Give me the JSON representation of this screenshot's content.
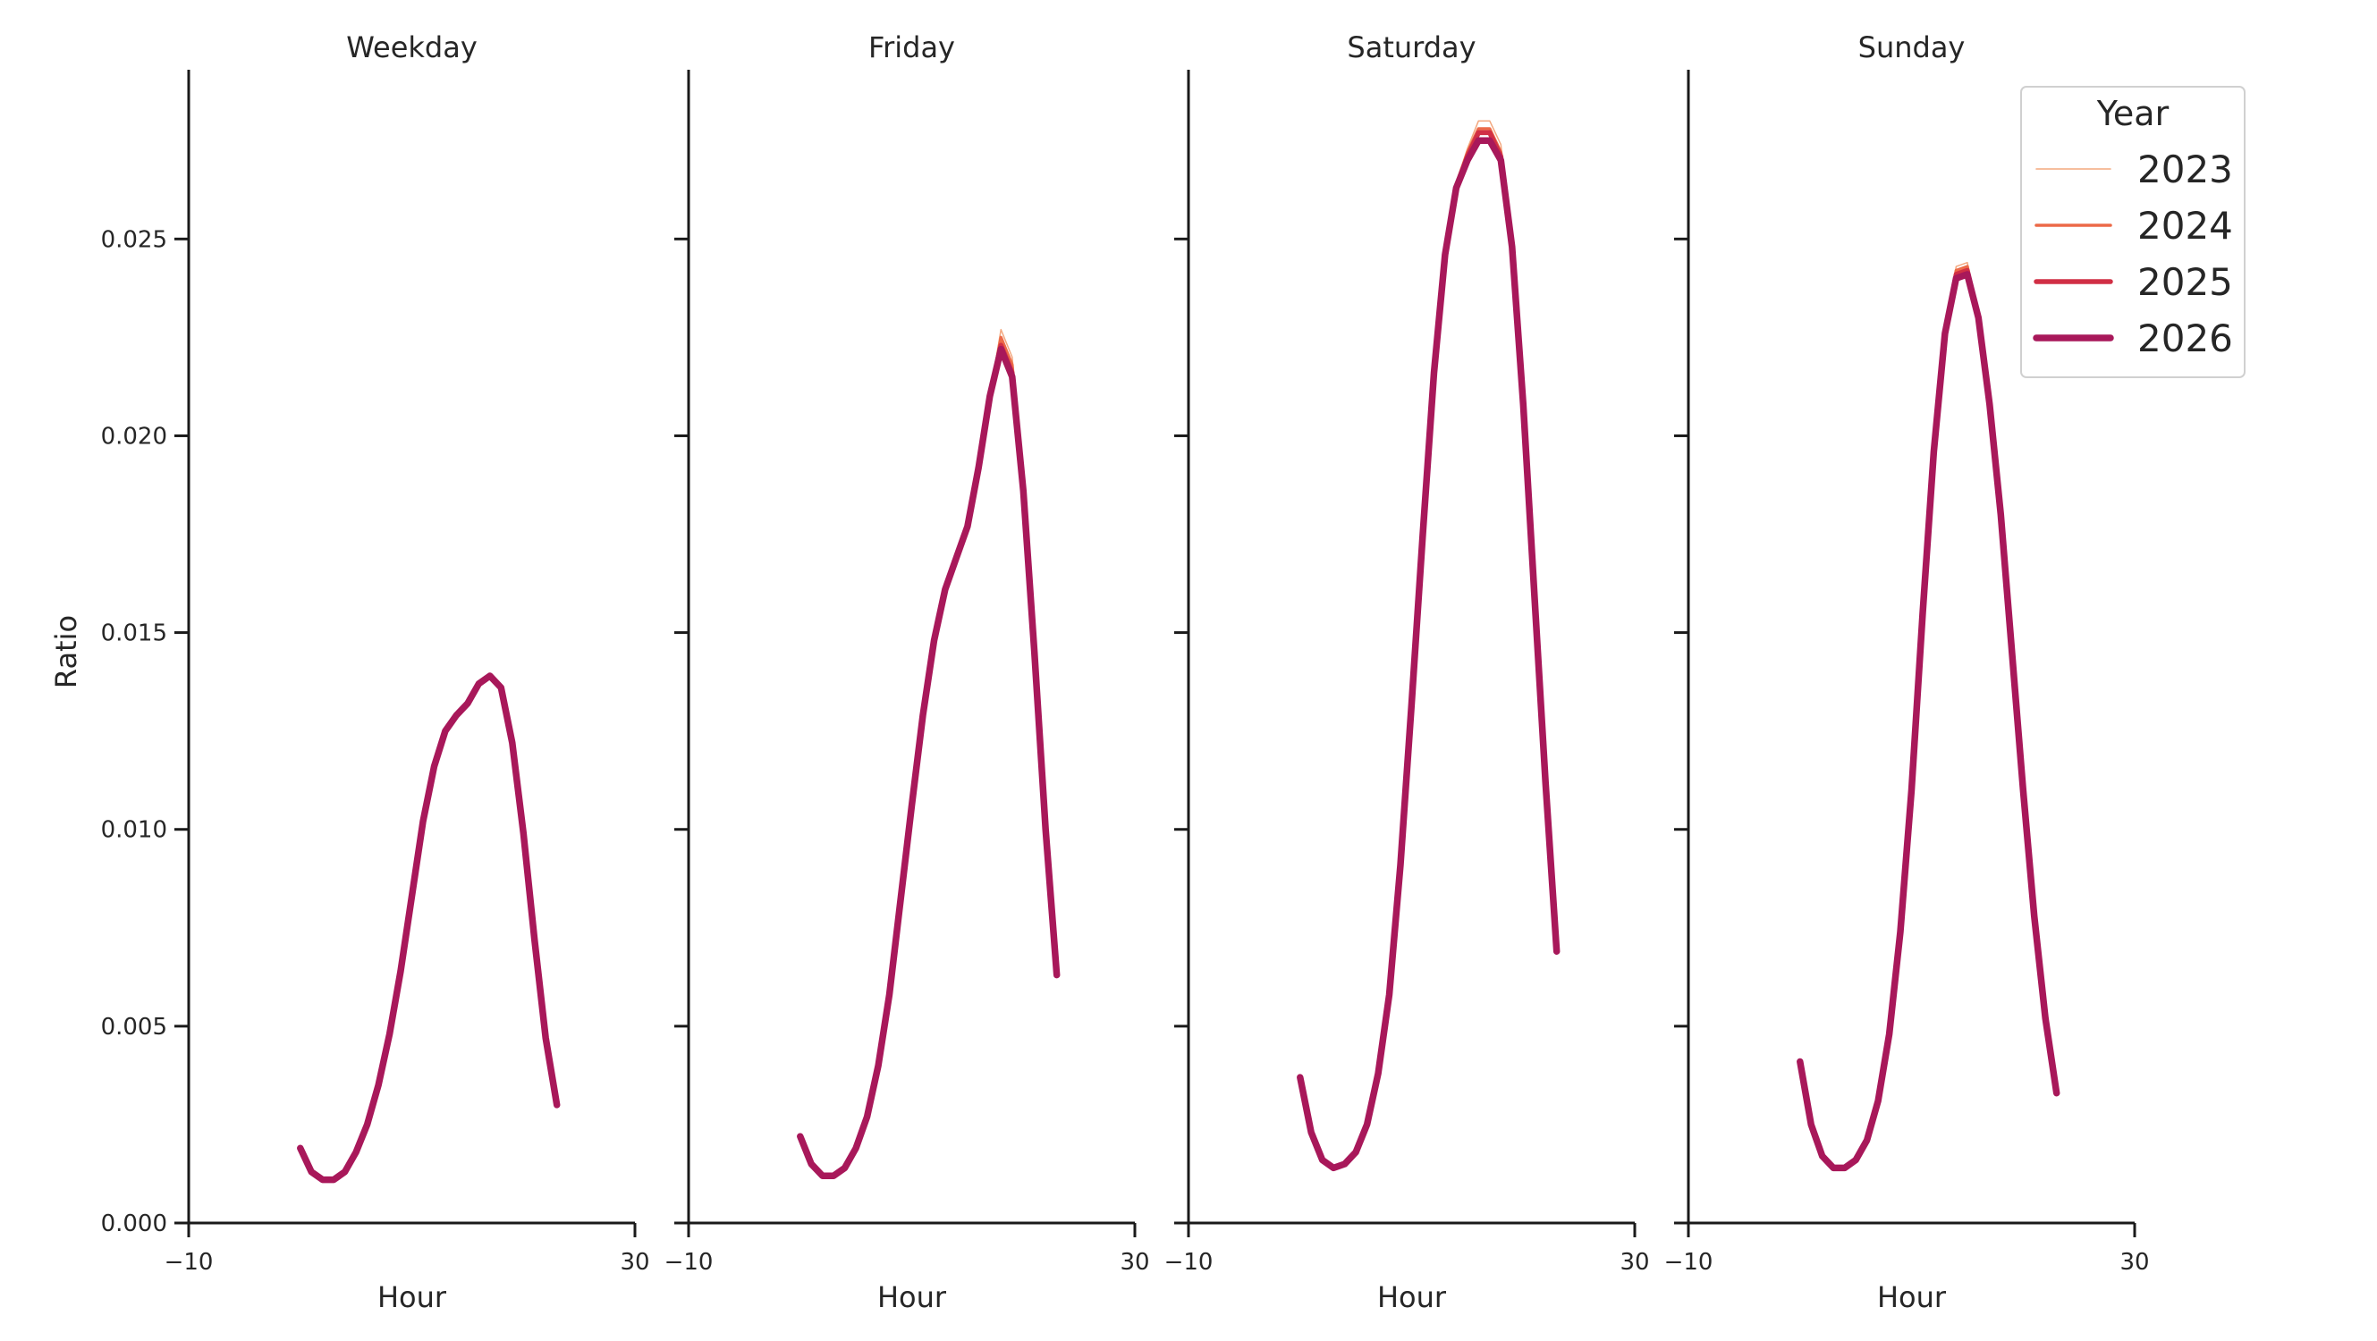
{
  "chart_data": {
    "type": "line",
    "ylabel": "Ratio",
    "xlabel": "Hour",
    "xlim": [
      -10,
      30
    ],
    "ylim": [
      0,
      0.0293
    ],
    "xticks": [
      -10,
      30
    ],
    "xtick_labels": [
      "−10",
      "30"
    ],
    "yticks": [
      0.0,
      0.005,
      0.01,
      0.015,
      0.02,
      0.025
    ],
    "ytick_labels": [
      "0.000",
      "0.005",
      "0.010",
      "0.015",
      "0.020",
      "0.025"
    ],
    "legend": {
      "title": "Year",
      "placement": "upper right",
      "entries": [
        {
          "label": "2023",
          "color": "#f3a87f",
          "width": 1.5
        },
        {
          "label": "2024",
          "color": "#ec6a48",
          "width": 3.5
        },
        {
          "label": "2025",
          "color": "#d12f45",
          "width": 5.5
        },
        {
          "label": "2026",
          "color": "#a8185a",
          "width": 7.5
        }
      ]
    },
    "panels": [
      {
        "title": "Weekday",
        "x": [
          0,
          1,
          2,
          3,
          4,
          5,
          6,
          7,
          8,
          9,
          10,
          11,
          12,
          13,
          14,
          15,
          16,
          17,
          18,
          19,
          20,
          21,
          22,
          23
        ],
        "series": [
          {
            "name": "2026",
            "values": [
              0.0019,
              0.0013,
              0.0011,
              0.0011,
              0.0013,
              0.0018,
              0.0025,
              0.0035,
              0.0048,
              0.0064,
              0.0083,
              0.0102,
              0.0116,
              0.0125,
              0.0129,
              0.0132,
              0.0137,
              0.0139,
              0.0136,
              0.0122,
              0.0099,
              0.0072,
              0.0047,
              0.003
            ]
          }
        ]
      },
      {
        "title": "Friday",
        "x": [
          0,
          1,
          2,
          3,
          4,
          5,
          6,
          7,
          8,
          9,
          10,
          11,
          12,
          13,
          14,
          15,
          16,
          17,
          18,
          19,
          20,
          21,
          22,
          23
        ],
        "series": [
          {
            "name": "2023",
            "values": [
              0.0022,
              0.0015,
              0.0012,
              0.0012,
              0.0014,
              0.0019,
              0.0027,
              0.004,
              0.0058,
              0.0082,
              0.0106,
              0.0129,
              0.0148,
              0.0161,
              0.0169,
              0.0177,
              0.0192,
              0.021,
              0.0227,
              0.022,
              0.0189,
              0.0147,
              0.01,
              0.0063
            ]
          },
          {
            "name": "2024",
            "values": [
              0.0022,
              0.0015,
              0.0012,
              0.0012,
              0.0014,
              0.0019,
              0.0027,
              0.004,
              0.0058,
              0.0082,
              0.0106,
              0.0129,
              0.0148,
              0.0161,
              0.0169,
              0.0177,
              0.0192,
              0.021,
              0.0225,
              0.0218,
              0.0188,
              0.0146,
              0.01,
              0.0063
            ]
          },
          {
            "name": "2025",
            "values": [
              0.0022,
              0.0015,
              0.0012,
              0.0012,
              0.0014,
              0.0019,
              0.0027,
              0.004,
              0.0058,
              0.0082,
              0.0106,
              0.0129,
              0.0148,
              0.0161,
              0.0169,
              0.0177,
              0.0192,
              0.021,
              0.0223,
              0.0216,
              0.0187,
              0.0146,
              0.01,
              0.0063
            ]
          },
          {
            "name": "2026",
            "values": [
              0.0022,
              0.0015,
              0.0012,
              0.0012,
              0.0014,
              0.0019,
              0.0027,
              0.004,
              0.0058,
              0.0082,
              0.0106,
              0.0129,
              0.0148,
              0.0161,
              0.0169,
              0.0177,
              0.0192,
              0.021,
              0.0222,
              0.0215,
              0.0186,
              0.0145,
              0.01,
              0.0063
            ]
          }
        ]
      },
      {
        "title": "Saturday",
        "x": [
          0,
          1,
          2,
          3,
          4,
          5,
          6,
          7,
          8,
          9,
          10,
          11,
          12,
          13,
          14,
          15,
          16,
          17,
          18,
          19,
          20,
          21,
          22,
          23
        ],
        "series": [
          {
            "name": "2023",
            "values": [
              0.0037,
              0.0023,
              0.0016,
              0.0014,
              0.0015,
              0.0018,
              0.0025,
              0.0038,
              0.0058,
              0.0091,
              0.0132,
              0.0175,
              0.0216,
              0.0247,
              0.0264,
              0.0273,
              0.028,
              0.028,
              0.0274,
              0.0248,
              0.0208,
              0.016,
              0.0112,
              0.0069
            ]
          },
          {
            "name": "2024",
            "values": [
              0.0037,
              0.0023,
              0.0016,
              0.0014,
              0.0015,
              0.0018,
              0.0025,
              0.0038,
              0.0058,
              0.0091,
              0.0132,
              0.0175,
              0.0216,
              0.0247,
              0.0264,
              0.0272,
              0.0278,
              0.0278,
              0.0272,
              0.0248,
              0.0208,
              0.016,
              0.0112,
              0.0069
            ]
          },
          {
            "name": "2025",
            "values": [
              0.0037,
              0.0023,
              0.0016,
              0.0014,
              0.0015,
              0.0018,
              0.0025,
              0.0038,
              0.0058,
              0.0091,
              0.0132,
              0.0175,
              0.0216,
              0.0247,
              0.0263,
              0.0271,
              0.0277,
              0.0277,
              0.0271,
              0.0248,
              0.0208,
              0.016,
              0.0112,
              0.0069
            ]
          },
          {
            "name": "2026",
            "values": [
              0.0037,
              0.0023,
              0.0016,
              0.0014,
              0.0015,
              0.0018,
              0.0025,
              0.0038,
              0.0058,
              0.0091,
              0.0132,
              0.0175,
              0.0216,
              0.0246,
              0.0263,
              0.027,
              0.0275,
              0.0275,
              0.027,
              0.0248,
              0.0208,
              0.016,
              0.0112,
              0.0069
            ]
          }
        ]
      },
      {
        "title": "Sunday",
        "x": [
          0,
          1,
          2,
          3,
          4,
          5,
          6,
          7,
          8,
          9,
          10,
          11,
          12,
          13,
          14,
          15,
          16,
          17,
          18,
          19,
          20,
          21,
          22,
          23
        ],
        "series": [
          {
            "name": "2023",
            "values": [
              0.0041,
              0.0025,
              0.0017,
              0.0014,
              0.0014,
              0.0016,
              0.0021,
              0.0031,
              0.0048,
              0.0074,
              0.011,
              0.0155,
              0.0196,
              0.0226,
              0.0243,
              0.0244,
              0.023,
              0.0208,
              0.018,
              0.0145,
              0.011,
              0.0078,
              0.0052,
              0.0033
            ]
          },
          {
            "name": "2024",
            "values": [
              0.0041,
              0.0025,
              0.0017,
              0.0014,
              0.0014,
              0.0016,
              0.0021,
              0.0031,
              0.0048,
              0.0074,
              0.011,
              0.0155,
              0.0196,
              0.0226,
              0.0242,
              0.0243,
              0.023,
              0.0208,
              0.018,
              0.0145,
              0.011,
              0.0078,
              0.0052,
              0.0033
            ]
          },
          {
            "name": "2025",
            "values": [
              0.0041,
              0.0025,
              0.0017,
              0.0014,
              0.0014,
              0.0016,
              0.0021,
              0.0031,
              0.0048,
              0.0074,
              0.011,
              0.0155,
              0.0196,
              0.0226,
              0.0241,
              0.0242,
              0.023,
              0.0208,
              0.018,
              0.0145,
              0.011,
              0.0078,
              0.0052,
              0.0033
            ]
          },
          {
            "name": "2026",
            "values": [
              0.0041,
              0.0025,
              0.0017,
              0.0014,
              0.0014,
              0.0016,
              0.0021,
              0.0031,
              0.0048,
              0.0074,
              0.011,
              0.0155,
              0.0196,
              0.0226,
              0.024,
              0.0241,
              0.023,
              0.0208,
              0.018,
              0.0145,
              0.011,
              0.0078,
              0.0052,
              0.0033
            ]
          }
        ]
      }
    ]
  }
}
